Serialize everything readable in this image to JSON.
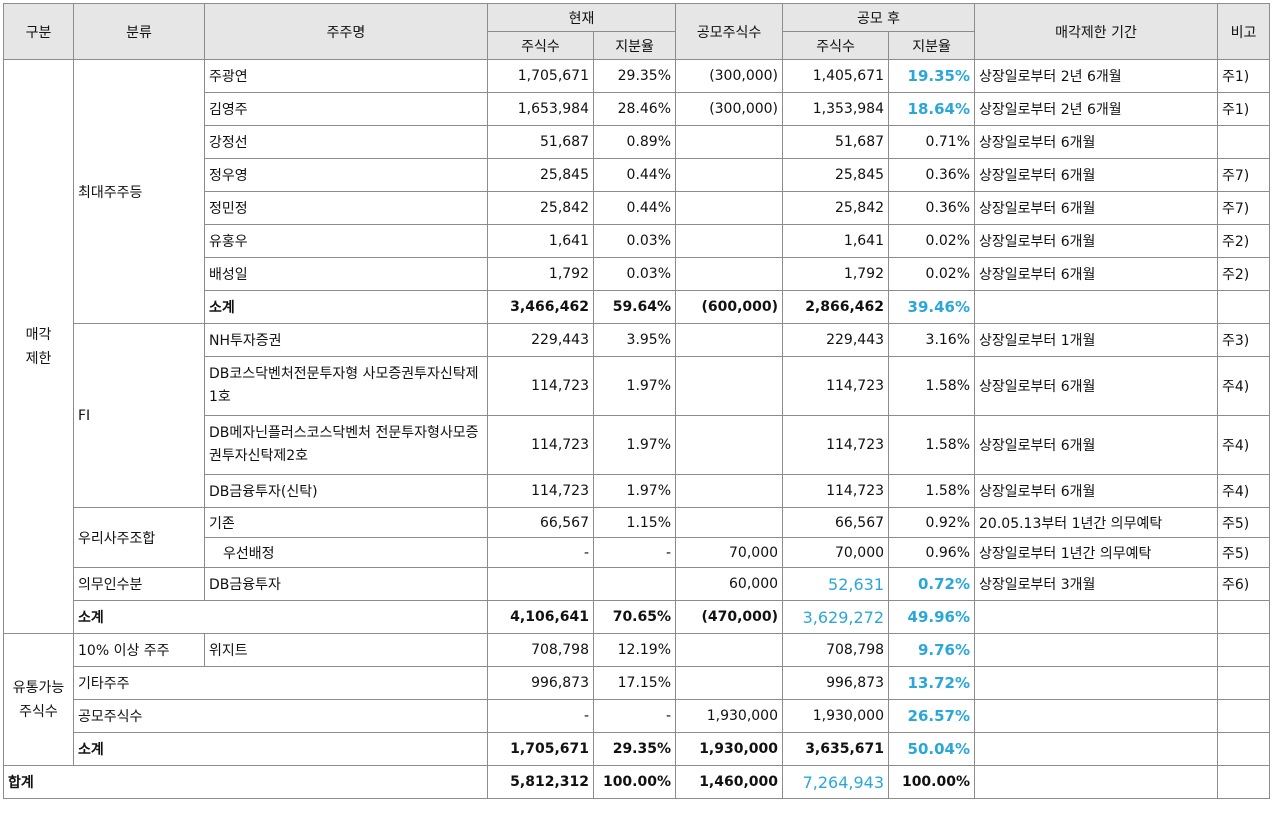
{
  "headers": {
    "gubun": "구분",
    "bunryu": "분류",
    "name": "주주명",
    "current": "현재",
    "shares": "주식수",
    "ratio": "지분율",
    "offering": "공모주식수",
    "after": "공모 후",
    "shares2": "주식수",
    "ratio2": "지분율",
    "period": "매각제한 기간",
    "note": "비고"
  },
  "groups": {
    "restricted": "매각제한",
    "tradable": "유통가능주식수",
    "total": "합계"
  },
  "categories": {
    "major": "최대주주등",
    "fi": "FI",
    "esop": "우리사주조합",
    "mandatory": "의무인수분",
    "ten_pct": "10% 이상 주주",
    "others": "기타주주",
    "offering_shares": "공모주식수",
    "subtotal": "소계"
  },
  "rows": [
    {
      "name": "주광연",
      "cur_shares": "1,705,671",
      "cur_ratio": "29.35%",
      "offer": "(300,000)",
      "post_shares": "1,405,671",
      "post_ratio": "19.35%",
      "period": "상장일로부터 2년 6개월",
      "note": "주1)"
    },
    {
      "name": "김영주",
      "cur_shares": "1,653,984",
      "cur_ratio": "28.46%",
      "offer": "(300,000)",
      "post_shares": "1,353,984",
      "post_ratio": "18.64%",
      "period": "상장일로부터 2년 6개월",
      "note": "주1)"
    },
    {
      "name": "강정선",
      "cur_shares": "51,687",
      "cur_ratio": "0.89%",
      "offer": "",
      "post_shares": "51,687",
      "post_ratio": "0.71%",
      "period": "상장일로부터 6개월",
      "note": ""
    },
    {
      "name": "정우영",
      "cur_shares": "25,845",
      "cur_ratio": "0.44%",
      "offer": "",
      "post_shares": "25,845",
      "post_ratio": "0.36%",
      "period": "상장일로부터 6개월",
      "note": "주7)"
    },
    {
      "name": "정민정",
      "cur_shares": "25,842",
      "cur_ratio": "0.44%",
      "offer": "",
      "post_shares": "25,842",
      "post_ratio": "0.36%",
      "period": "상장일로부터 6개월",
      "note": "주7)"
    },
    {
      "name": "유홍우",
      "cur_shares": "1,641",
      "cur_ratio": "0.03%",
      "offer": "",
      "post_shares": "1,641",
      "post_ratio": "0.02%",
      "period": "상장일로부터 6개월",
      "note": "주2)"
    },
    {
      "name": "배성일",
      "cur_shares": "1,792",
      "cur_ratio": "0.03%",
      "offer": "",
      "post_shares": "1,792",
      "post_ratio": "0.02%",
      "period": "상장일로부터 6개월",
      "note": "주2)"
    },
    {
      "name": "소계",
      "cur_shares": "3,466,462",
      "cur_ratio": "59.64%",
      "offer": "(600,000)",
      "post_shares": "2,866,462",
      "post_ratio": "39.46%",
      "period": "",
      "note": ""
    },
    {
      "name": "NH투자증권",
      "cur_shares": "229,443",
      "cur_ratio": "3.95%",
      "offer": "",
      "post_shares": "229,443",
      "post_ratio": "3.16%",
      "period": "상장일로부터 1개월",
      "note": "주3)"
    },
    {
      "name": "DB코스닥벤처전문투자형 사모증권투자신탁제1호",
      "cur_shares": "114,723",
      "cur_ratio": "1.97%",
      "offer": "",
      "post_shares": "114,723",
      "post_ratio": "1.58%",
      "period": "상장일로부터 6개월",
      "note": "주4)"
    },
    {
      "name": "DB메자닌플러스코스닥벤처 전문투자형사모증권투자신탁제2호",
      "cur_shares": "114,723",
      "cur_ratio": "1.97%",
      "offer": "",
      "post_shares": "114,723",
      "post_ratio": "1.58%",
      "period": "상장일로부터 6개월",
      "note": "주4)"
    },
    {
      "name": "DB금융투자(신탁)",
      "cur_shares": "114,723",
      "cur_ratio": "1.97%",
      "offer": "",
      "post_shares": "114,723",
      "post_ratio": "1.58%",
      "period": "상장일로부터 6개월",
      "note": "주4)"
    },
    {
      "name": "기존",
      "cur_shares": "66,567",
      "cur_ratio": "1.15%",
      "offer": "",
      "post_shares": "66,567",
      "post_ratio": "0.92%",
      "period": "20.05.13부터 1년간 의무예탁",
      "note": "주5)"
    },
    {
      "name": "우선배정",
      "cur_shares": "-",
      "cur_ratio": "-",
      "offer": "70,000",
      "post_shares": "70,000",
      "post_ratio": "0.96%",
      "period": "상장일로부터 1년간 의무예탁",
      "note": "주5)"
    },
    {
      "name": "DB금융투자",
      "cur_shares": "",
      "cur_ratio": "",
      "offer": "60,000",
      "post_shares": "52,631",
      "post_ratio": "0.72%",
      "period": "상장일로부터 3개월",
      "note": "주6)"
    },
    {
      "name": "소계",
      "cur_shares": "4,106,641",
      "cur_ratio": "70.65%",
      "offer": "(470,000)",
      "post_shares": "3,629,272",
      "post_ratio": "49.96%",
      "period": "",
      "note": ""
    },
    {
      "name": "위지트",
      "cur_shares": "708,798",
      "cur_ratio": "12.19%",
      "offer": "",
      "post_shares": "708,798",
      "post_ratio": "9.76%",
      "period": "",
      "note": ""
    },
    {
      "name": "",
      "cur_shares": "996,873",
      "cur_ratio": "17.15%",
      "offer": "",
      "post_shares": "996,873",
      "post_ratio": "13.72%",
      "period": "",
      "note": ""
    },
    {
      "name": "",
      "cur_shares": "-",
      "cur_ratio": "-",
      "offer": "1,930,000",
      "post_shares": "1,930,000",
      "post_ratio": "26.57%",
      "period": "",
      "note": ""
    },
    {
      "name": "소계",
      "cur_shares": "1,705,671",
      "cur_ratio": "29.35%",
      "offer": "1,930,000",
      "post_shares": "3,635,671",
      "post_ratio": "50.04%",
      "period": "",
      "note": ""
    },
    {
      "name": "합계",
      "cur_shares": "5,812,312",
      "cur_ratio": "100.00%",
      "offer": "1,460,000",
      "post_shares": "7,264,943",
      "post_ratio": "100.00%",
      "period": "",
      "note": ""
    }
  ],
  "colors": {
    "highlight": "#2aa7d8",
    "header_bg": "#e6e6e6",
    "border": "#8c8c8c"
  }
}
